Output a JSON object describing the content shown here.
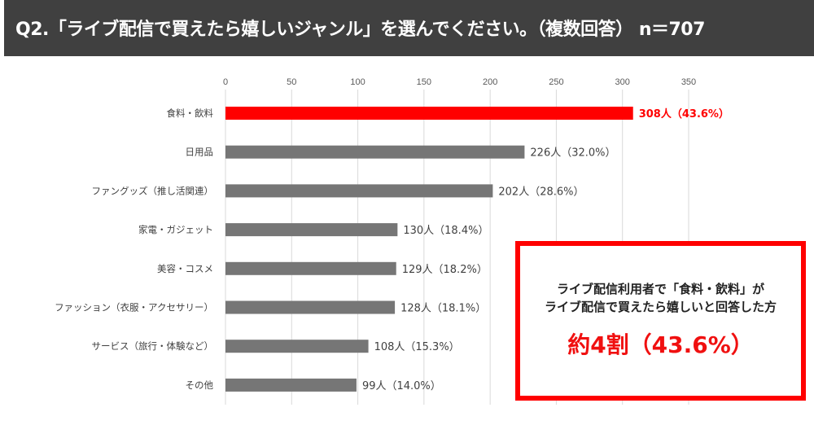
{
  "header": {
    "title": "Q2.「ライブ配信で買えたら嬉しいジャンル」を選んでください。（複数回答） n＝707"
  },
  "chart_data": {
    "type": "bar",
    "orientation": "horizontal",
    "categories": [
      "食料・飲料",
      "日用品",
      "ファングッズ（推し活関連）",
      "家電・ガジェット",
      "美容・コスメ",
      "ファッション（衣服・アクセサリー）",
      "サービス（旅行・体験など）",
      "その他"
    ],
    "values": [
      308,
      226,
      202,
      130,
      129,
      128,
      108,
      99
    ],
    "data_labels": [
      "308人（43.6%）",
      "226人（32.0%）",
      "202人（28.6%）",
      "130人（18.4%）",
      "129人（18.2%）",
      "128人（18.1%）",
      "108人（15.3%）",
      "99人（14.0%）"
    ],
    "xlim": [
      0,
      350
    ],
    "xticks": [
      0,
      50,
      100,
      150,
      200,
      250,
      300,
      350
    ],
    "axis_position": "top",
    "grid": true,
    "colors": {
      "highlight": "#ff0000",
      "default": "#767676"
    }
  },
  "callout": {
    "line1": "ライブ配信利用者で「食料・飲料」が",
    "line2": "ライブ配信で買えたら嬉しいと回答した方",
    "highlight": "約4割（43.6%）"
  }
}
